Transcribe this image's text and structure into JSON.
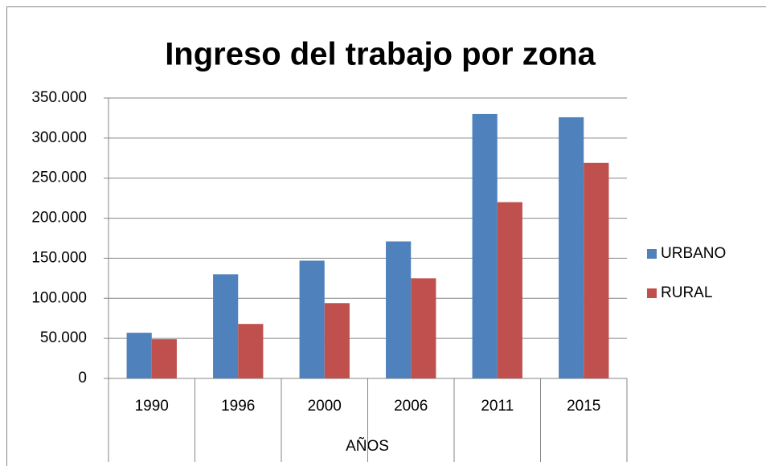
{
  "chart_data": {
    "type": "bar",
    "title": "Ingreso del trabajo por zona",
    "x_label": "AÑOS",
    "categories": [
      "1990",
      "1996",
      "2000",
      "2006",
      "2011",
      "2015"
    ],
    "series": [
      {
        "name": "URBANO",
        "color": "#4f81bd",
        "values": [
          57000,
          130000,
          147000,
          171000,
          330000,
          326000
        ]
      },
      {
        "name": "RURAL",
        "color": "#c0504d",
        "values": [
          49000,
          68000,
          94000,
          125000,
          220000,
          269000
        ]
      }
    ],
    "ylim": [
      0,
      350000
    ],
    "yticks": [
      0,
      {
        "value": 50000,
        "label": "50.000"
      },
      {
        "value": 100000,
        "label": "100.000"
      },
      {
        "value": 150000,
        "label": "150.000"
      },
      {
        "value": 200000,
        "label": "200.000"
      },
      {
        "value": 250000,
        "label": "250.000"
      },
      {
        "value": 300000,
        "label": "300.000"
      },
      {
        "value": 350000,
        "label": "350.000"
      }
    ],
    "grid": true,
    "legend": "right"
  }
}
